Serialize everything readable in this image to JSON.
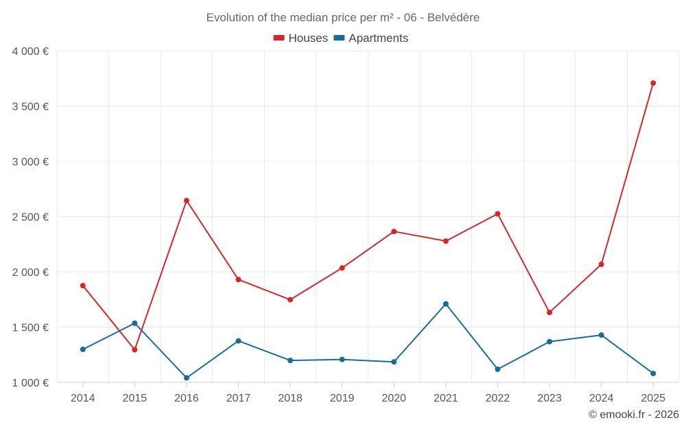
{
  "chart_data": {
    "type": "line",
    "title": "Evolution of the median price per m² - 06 - Belvédère",
    "categories": [
      "2014",
      "2015",
      "2016",
      "2017",
      "2018",
      "2019",
      "2020",
      "2021",
      "2022",
      "2023",
      "2024",
      "2025"
    ],
    "series": [
      {
        "name": "Houses",
        "color": "#d62728",
        "values": [
          1875,
          1295,
          2645,
          1930,
          1748,
          2035,
          2365,
          2278,
          2525,
          1632,
          2068,
          3708
        ]
      },
      {
        "name": "Apartments",
        "color": "#1a6a9a",
        "values": [
          1298,
          1535,
          1040,
          1375,
          1198,
          1207,
          1185,
          1710,
          1118,
          1368,
          1428,
          1080
        ]
      }
    ],
    "ylim": [
      1000,
      4000
    ],
    "yticks": [
      1000,
      1500,
      2000,
      2500,
      3000,
      3500,
      4000
    ],
    "ytick_labels": [
      "1 000 €",
      "1 500 €",
      "2 000 €",
      "2 500 €",
      "3 000 €",
      "3 500 €",
      "4 000 €"
    ],
    "legend_position": "top-center",
    "grid": true,
    "credit": "© emooki.fr - 2026"
  }
}
